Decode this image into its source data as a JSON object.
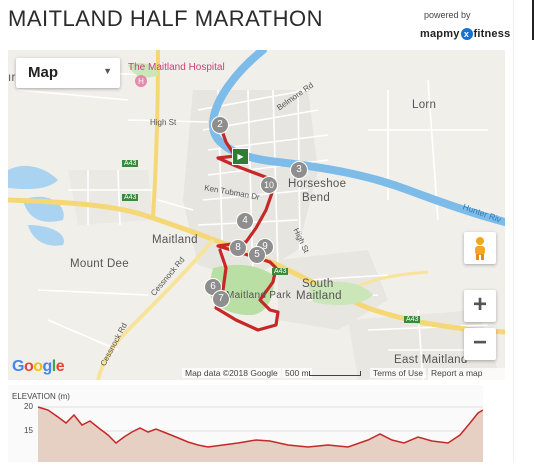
{
  "header": {
    "title": "MAITLAND HALF MARATHON",
    "powered_by": "powered by",
    "brand_left": "mapmy",
    "brand_x": "x",
    "brand_right": "fitness"
  },
  "map": {
    "map_type": "Map",
    "map_type_caret": "▼",
    "zoom_in": "+",
    "zoom_out": "−",
    "google_logo": [
      "G",
      "o",
      "o",
      "g",
      "l",
      "e"
    ],
    "map_data": "Map data ©2018 Google",
    "scale_label": "500 m",
    "terms": "Terms of Use",
    "report": "Report a map error",
    "places": {
      "hospital": "The Maitland Hospital",
      "lorn": "Lorn",
      "horseshoe_bend_1": "Horseshoe",
      "horseshoe_bend_2": "Bend",
      "maitland": "Maitland",
      "mount_dee": "Mount Dee",
      "south_maitland_1": "South",
      "south_maitland_2": "Maitland",
      "east_maitland": "East Maitland",
      "maitland_park": "Maitland Park",
      "high_st_1": "High St",
      "high_st_2": "High St",
      "belmore_rd": "Belmore Rd",
      "ken_tubman_dr": "Ken Tubman Dr",
      "cessnock_rd_1": "Cessnock Rd",
      "cessnock_rd_2": "Cessnock Rd",
      "hunter_river": "Hunter Riv",
      "a43_1": "A43",
      "a43_2": "A43",
      "a43_3": "A43",
      "a43_4": "A43",
      "partial_left": "ır"
    },
    "markers": [
      "2",
      "3",
      "10",
      "4",
      "8",
      "9",
      "5",
      "6",
      "7"
    ],
    "start_marker_symbol": "▶"
  },
  "elevation": {
    "label": "ELEVATION (m)",
    "ticks": [
      "20",
      "15"
    ]
  },
  "colors": {
    "route": "#c62828",
    "river": "#74b8e8",
    "park": "#b9dfa4",
    "highway": "#f6d776",
    "marker_fill": "#8e8e8e",
    "start_marker": "#2e7d32",
    "elevation_fill": "#e6cfc3",
    "elevation_line": "#c62828"
  }
}
